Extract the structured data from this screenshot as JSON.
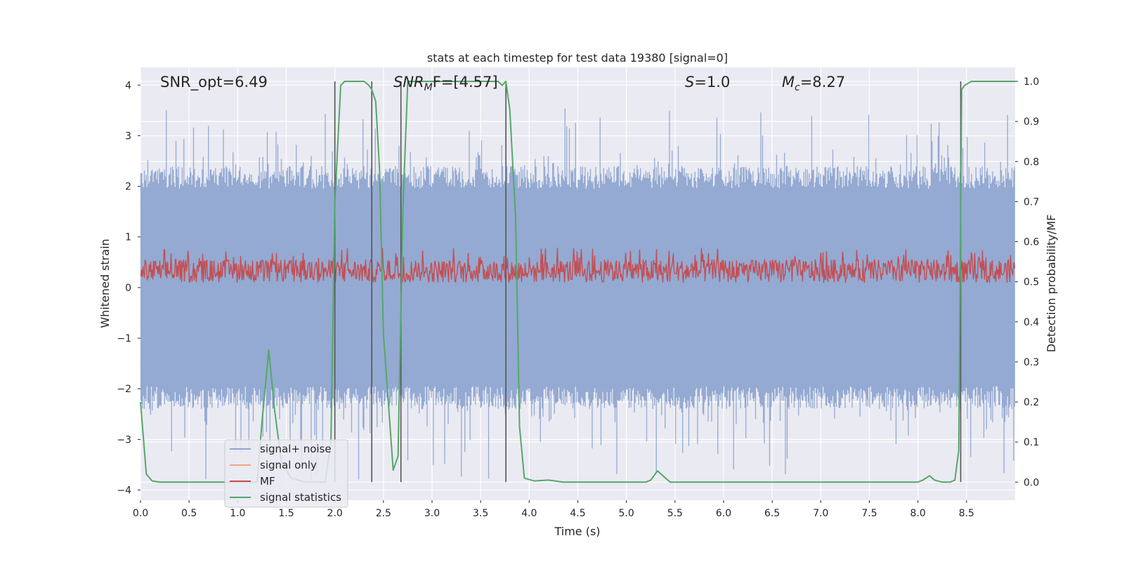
{
  "chart_data": {
    "type": "line",
    "title": "stats at each timestep for test data 19380 [signal=0]",
    "xlabel": "Time (s)",
    "ylabel": "Whitened strain",
    "y2label": "Detection probability/MF",
    "xlim": [
      0.0,
      9.0
    ],
    "ylim": [
      -4.2,
      4.35
    ],
    "y2lim": [
      -0.045,
      1.035
    ],
    "xticks": [
      0.0,
      0.5,
      1.0,
      1.5,
      2.0,
      2.5,
      3.0,
      3.5,
      4.0,
      4.5,
      5.0,
      5.5,
      6.0,
      6.5,
      7.0,
      7.5,
      8.0,
      8.5
    ],
    "xtick_labels": [
      "0.0",
      "0.5",
      "1.0",
      "1.5",
      "2.0",
      "2.5",
      "3.0",
      "3.5",
      "4.0",
      "4.5",
      "5.0",
      "5.5",
      "6.0",
      "6.5",
      "7.0",
      "7.5",
      "8.0",
      "8.5"
    ],
    "yticks": [
      4,
      3,
      2,
      1,
      0,
      -1,
      -2,
      -3,
      -4
    ],
    "ytick_labels": [
      "4",
      "3",
      "2",
      "1",
      "0",
      "−1",
      "−2",
      "−3",
      "−4"
    ],
    "y2ticks": [
      1.0,
      0.9,
      0.8,
      0.7,
      0.6,
      0.5,
      0.4,
      0.3,
      0.2,
      0.1,
      0.0
    ],
    "y2tick_labels": [
      "1.0",
      "0.9",
      "0.8",
      "0.7",
      "0.6",
      "0.5",
      "0.4",
      "0.3",
      "0.2",
      "0.1",
      "0.0"
    ],
    "grid": true,
    "legend": {
      "placement": "lower-left",
      "entries": [
        {
          "label": "signal+ noise",
          "color": "#8fa6d0"
        },
        {
          "label": "signal only",
          "color": "#f4a582"
        },
        {
          "label": "MF",
          "color": "#c44e52"
        },
        {
          "label": "signal statistics",
          "color": "#55a868"
        }
      ]
    },
    "annotations": [
      {
        "text": "SNR_opt=6.49",
        "x": 0.2,
        "y": 4.1
      },
      {
        "text_main": "SNR",
        "text_sub": "M",
        "text_rest": "F=[4.57]",
        "italic": true,
        "x": 2.6,
        "y": 4.1
      },
      {
        "text_main": "S",
        "text_rest": "=1.0",
        "italic": true,
        "x": 5.6,
        "y": 4.1
      },
      {
        "text_main": "M",
        "text_sub": "c",
        "text_rest": "=8.27",
        "italic": true,
        "x": 6.6,
        "y": 4.1
      }
    ],
    "noise_series": {
      "name": "signal+ noise",
      "color": "#8fa6d0",
      "typical_envelope": [
        -2.0,
        2.0
      ],
      "extreme_range": [
        -3.8,
        3.55
      ]
    },
    "mf_series": {
      "name": "MF",
      "color": "#c44e52",
      "band": [
        0.1,
        0.78
      ],
      "center": 0.3
    },
    "signal_only_series": {
      "name": "signal only",
      "color": "#f4a582",
      "values": []
    },
    "stat_series": {
      "name": "signal statistics",
      "color": "#55a868",
      "axis": "right",
      "x": [
        0.0,
        0.06,
        0.12,
        0.2,
        0.4,
        0.8,
        1.2,
        1.25,
        1.32,
        1.38,
        1.45,
        1.55,
        1.7,
        1.9,
        1.96,
        2.0,
        2.06,
        2.1,
        2.3,
        2.35,
        2.38,
        2.42,
        2.46,
        2.5,
        2.6,
        2.65,
        2.7,
        2.75,
        3.0,
        3.5,
        3.68,
        3.72,
        3.76,
        3.8,
        3.86,
        3.9,
        3.95,
        4.05,
        4.2,
        4.35,
        5.2,
        5.25,
        5.32,
        5.38,
        5.45,
        5.6,
        8.0,
        8.05,
        8.12,
        8.17,
        8.25,
        8.33,
        8.38,
        8.42,
        8.45,
        8.48,
        8.55,
        8.65,
        9.0
      ],
      "y": [
        0.2,
        0.02,
        0.003,
        0.0,
        0.0,
        0.0,
        0.0,
        0.15,
        0.33,
        0.18,
        0.05,
        0.01,
        0.0,
        0.0,
        0.1,
        0.7,
        0.99,
        1.0,
        1.0,
        0.99,
        0.98,
        0.95,
        0.78,
        0.37,
        0.03,
        0.065,
        0.68,
        1.0,
        1.0,
        1.0,
        1.0,
        0.99,
        1.0,
        0.93,
        0.66,
        0.14,
        0.01,
        0.003,
        0.005,
        0.0,
        0.0,
        0.005,
        0.028,
        0.015,
        0.0,
        0.0,
        0.0,
        0.005,
        0.016,
        0.005,
        0.0,
        0.0,
        0.005,
        0.08,
        0.98,
        0.99,
        1.0,
        1.0,
        1.0
      ]
    },
    "vertical_lines_x": [
      2.0,
      2.38,
      2.68,
      3.76,
      8.44
    ],
    "vertical_lines_top_y2": 1.0,
    "vertical_lines_bottom_y2": 0.0,
    "colors": {
      "plot_background": "#eaeaf2",
      "grid": "#ffffff",
      "vertical_line": "#555555",
      "legend_background": "#eaeaf2",
      "legend_border": "#cccccc"
    }
  }
}
